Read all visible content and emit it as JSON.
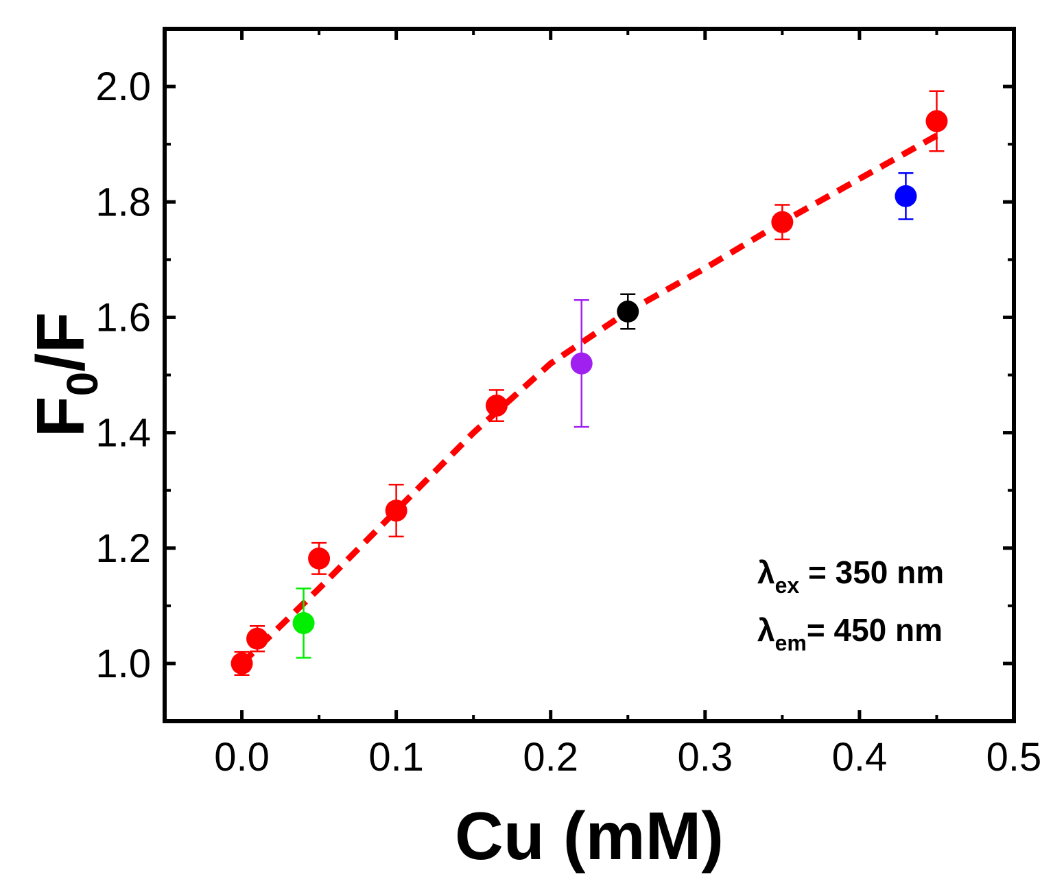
{
  "chart_data": {
    "type": "scatter",
    "title": "",
    "xlabel": "Cu (mM)",
    "ylabel_main": "F",
    "ylabel_sub": "0",
    "ylabel_rest": "/F",
    "xlim": [
      -0.05,
      0.5
    ],
    "ylim": [
      0.9,
      2.1
    ],
    "xticks": [
      0.0,
      0.1,
      0.2,
      0.3,
      0.4,
      0.5
    ],
    "xtick_labels": [
      "0.0",
      "0.1",
      "0.2",
      "0.3",
      "0.4",
      "0.5"
    ],
    "yticks": [
      1.0,
      1.2,
      1.4,
      1.6,
      1.8,
      2.0
    ],
    "ytick_labels": [
      "1.0",
      "1.2",
      "1.4",
      "1.6",
      "1.8",
      "2.0"
    ],
    "grid": false,
    "series": [
      {
        "name": "main",
        "color": "#ff0000",
        "points": [
          {
            "x": 0.0,
            "y": 1.0,
            "err": 0.02
          },
          {
            "x": 0.01,
            "y": 1.043,
            "err": 0.022
          },
          {
            "x": 0.05,
            "y": 1.182,
            "err": 0.027
          },
          {
            "x": 0.1,
            "y": 1.265,
            "err": 0.045
          },
          {
            "x": 0.165,
            "y": 1.447,
            "err": 0.027
          },
          {
            "x": 0.35,
            "y": 1.765,
            "err": 0.03
          },
          {
            "x": 0.45,
            "y": 1.94,
            "err": 0.052
          }
        ]
      },
      {
        "name": "green",
        "color": "#00ee00",
        "points": [
          {
            "x": 0.04,
            "y": 1.07,
            "err": 0.06
          }
        ]
      },
      {
        "name": "purple",
        "color": "#a020f0",
        "points": [
          {
            "x": 0.22,
            "y": 1.52,
            "err": 0.11
          }
        ]
      },
      {
        "name": "black",
        "color": "#000000",
        "points": [
          {
            "x": 0.25,
            "y": 1.61,
            "err": 0.03
          }
        ]
      },
      {
        "name": "blue",
        "color": "#0000ff",
        "points": [
          {
            "x": 0.43,
            "y": 1.81,
            "err": 0.04
          }
        ]
      }
    ],
    "fit_line": {
      "color": "#ff0000",
      "style": "dashed",
      "points": [
        {
          "x": 0.0,
          "y": 1.0
        },
        {
          "x": 0.05,
          "y": 1.13
        },
        {
          "x": 0.1,
          "y": 1.265
        },
        {
          "x": 0.15,
          "y": 1.4
        },
        {
          "x": 0.2,
          "y": 1.52
        },
        {
          "x": 0.25,
          "y": 1.61
        },
        {
          "x": 0.3,
          "y": 1.685
        },
        {
          "x": 0.35,
          "y": 1.765
        },
        {
          "x": 0.4,
          "y": 1.84
        },
        {
          "x": 0.45,
          "y": 1.915
        }
      ]
    },
    "annotations": [
      {
        "symbol": "λ",
        "sub": "ex",
        "text": " = 350 nm"
      },
      {
        "symbol": "λ",
        "sub": "em",
        "text": "= 450 nm"
      }
    ]
  }
}
